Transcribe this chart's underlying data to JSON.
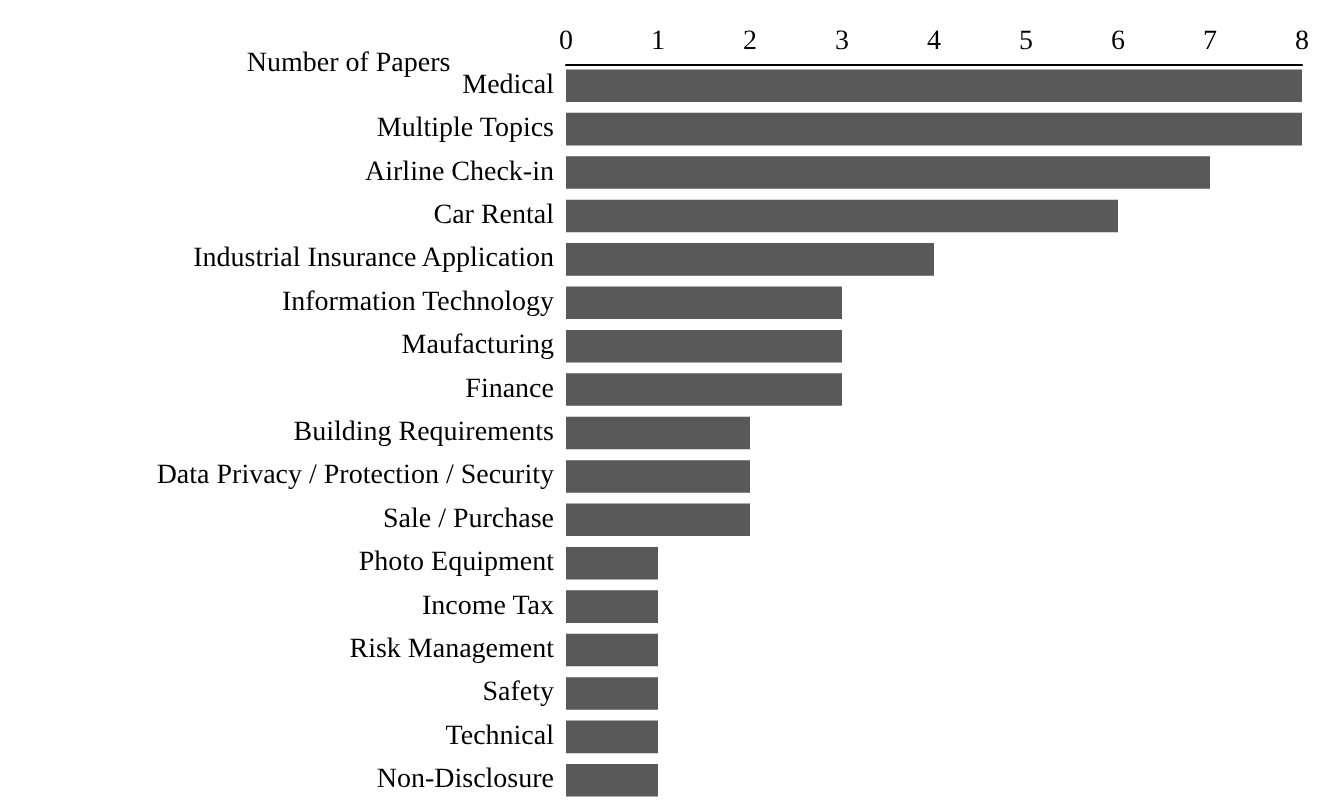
{
  "chart_data": {
    "type": "bar",
    "orientation": "horizontal",
    "xlabel": "Number of Papers",
    "categories": [
      "Medical",
      "Multiple Topics",
      "Airline Check-in",
      "Car Rental",
      "Industrial Insurance Application",
      "Information Technology",
      "Maufacturing",
      "Finance",
      "Building Requirements",
      "Data Privacy / Protection / Security",
      "Sale / Purchase",
      "Photo Equipment",
      "Income Tax",
      "Risk Management",
      "Safety",
      "Technical",
      "Non-Disclosure"
    ],
    "values": [
      8,
      8,
      7,
      6,
      4,
      3,
      3,
      3,
      2,
      2,
      2,
      1,
      1,
      1,
      1,
      1,
      1
    ],
    "color": "#595959",
    "xlim": [
      0,
      8
    ],
    "xticks": [
      0,
      1,
      2,
      3,
      4,
      5,
      6,
      7,
      8
    ],
    "grid": false
  }
}
